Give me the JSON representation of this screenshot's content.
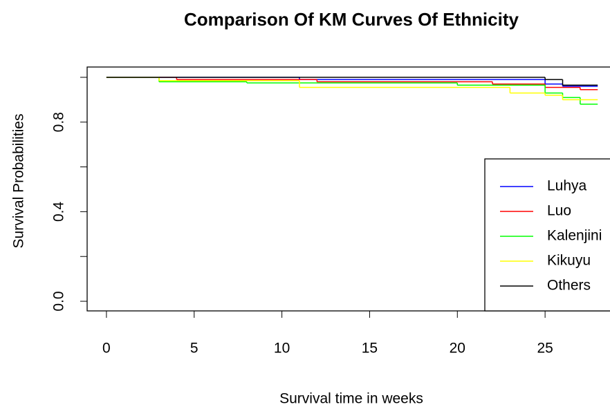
{
  "chart_data": {
    "type": "step",
    "title": "Comparison Of KM Curves Of Ethnicity",
    "x_label": "Survival time in weeks",
    "y_label": "Survival Probabilities",
    "xlim": [
      -1.1,
      28.7
    ],
    "ylim": [
      -0.043,
      1.046
    ],
    "xticks": [
      0,
      5,
      10,
      15,
      20,
      25
    ],
    "yticks": [
      {
        "value": 0,
        "label": "0.0"
      },
      {
        "value": 0.4,
        "label": "0.4"
      },
      {
        "value": 0.8,
        "label": "0.8"
      }
    ],
    "yticks_unlabeled": [
      0.2,
      0.6,
      1.0
    ],
    "legend": "bottomright",
    "series": [
      {
        "name": "Luhya",
        "color": "#0000ff",
        "x": [
          0,
          11,
          25,
          26,
          28
        ],
        "values": [
          1.0,
          0.99,
          0.97,
          0.96,
          0.96
        ]
      },
      {
        "name": "Luo",
        "color": "#ff0000",
        "x": [
          0,
          4,
          12,
          22,
          25,
          27,
          28
        ],
        "values": [
          1.0,
          0.99,
          0.98,
          0.97,
          0.955,
          0.945,
          0.945
        ]
      },
      {
        "name": "Kalenjini",
        "color": "#00ff00",
        "x": [
          0,
          3,
          8,
          20,
          25,
          26,
          27,
          28
        ],
        "values": [
          1.0,
          0.98,
          0.975,
          0.965,
          0.93,
          0.91,
          0.88,
          0.88
        ]
      },
      {
        "name": "Kikuyu",
        "color": "#ffff00",
        "x": [
          0,
          3,
          11,
          23,
          25,
          26,
          28
        ],
        "values": [
          1.0,
          0.985,
          0.955,
          0.93,
          0.92,
          0.9,
          0.9
        ]
      },
      {
        "name": "Others",
        "color": "#000000",
        "x": [
          0,
          25,
          26,
          28
        ],
        "values": [
          1.0,
          0.99,
          0.965,
          0.965
        ]
      }
    ]
  }
}
